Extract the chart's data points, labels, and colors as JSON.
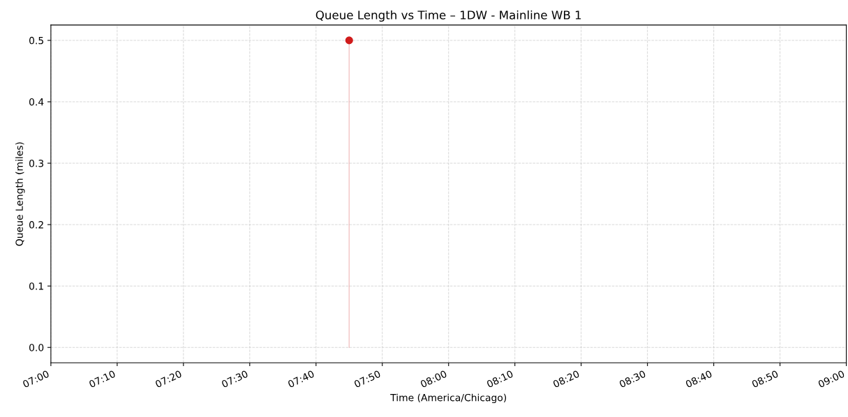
{
  "chart_data": {
    "type": "lollipop",
    "title": "Queue Length vs Time – 1DW - Mainline WB 1",
    "xlabel": "Time (America/Chicago)",
    "ylabel": "Queue Length (miles)",
    "x": [
      7.75
    ],
    "values": [
      0.5
    ],
    "color": "#d01c1c",
    "marker": "circle",
    "xlim": [
      7,
      9
    ],
    "xticks": [
      {
        "value": 7,
        "label": "07:00"
      },
      {
        "value": 7.1667,
        "label": "07:10"
      },
      {
        "value": 7.3333,
        "label": "07:20"
      },
      {
        "value": 7.5,
        "label": "07:30"
      },
      {
        "value": 7.6667,
        "label": "07:40"
      },
      {
        "value": 7.8333,
        "label": "07:50"
      },
      {
        "value": 8,
        "label": "08:00"
      },
      {
        "value": 8.1667,
        "label": "08:10"
      },
      {
        "value": 8.3333,
        "label": "08:20"
      },
      {
        "value": 8.5,
        "label": "08:30"
      },
      {
        "value": 8.6667,
        "label": "08:40"
      },
      {
        "value": 8.8333,
        "label": "08:50"
      },
      {
        "value": 9,
        "label": "09:00"
      }
    ],
    "ylim": [
      -0.025,
      0.525
    ],
    "yticks": [
      {
        "value": 0,
        "label": "0.0"
      },
      {
        "value": 0.1,
        "label": "0.1"
      },
      {
        "value": 0.2,
        "label": "0.2"
      },
      {
        "value": 0.3,
        "label": "0.3"
      },
      {
        "value": 0.4,
        "label": "0.4"
      },
      {
        "value": 0.5,
        "label": "0.5"
      }
    ],
    "grid": true
  }
}
